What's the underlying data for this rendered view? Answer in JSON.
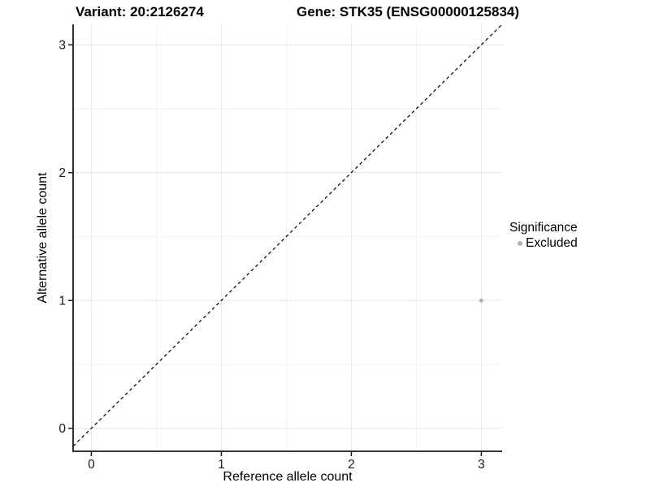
{
  "chart_data": {
    "type": "scatter",
    "title_left": "Variant: 20:2126274",
    "title_right": "Gene: STK35 (ENSG00000125834)",
    "xlabel": "Reference allele count",
    "ylabel": "Alternative allele count",
    "xlim": [
      -0.14,
      3.16
    ],
    "ylim": [
      -0.18,
      3.16
    ],
    "x_ticks": [
      0,
      1,
      2,
      3
    ],
    "y_ticks": [
      0,
      1,
      2,
      3
    ],
    "minor_grid_step": 0.5,
    "grid": true,
    "identity_line": {
      "style": "dashed",
      "slope": 1,
      "intercept": 0,
      "color": "#000000"
    },
    "series": [
      {
        "name": "Excluded",
        "color": "#b3b3b3",
        "points": [
          {
            "x": 3,
            "y": 1
          }
        ]
      }
    ],
    "legend_title": "Significance",
    "legend_position": "right",
    "colors": {
      "grid_major": "#e5e5e5",
      "grid_minor": "#f2f2f2",
      "axis_line": "#1a1a1a",
      "tick_mark": "#1a1a1a",
      "tick_label": "#1a1a1a",
      "background": "#ffffff"
    }
  }
}
